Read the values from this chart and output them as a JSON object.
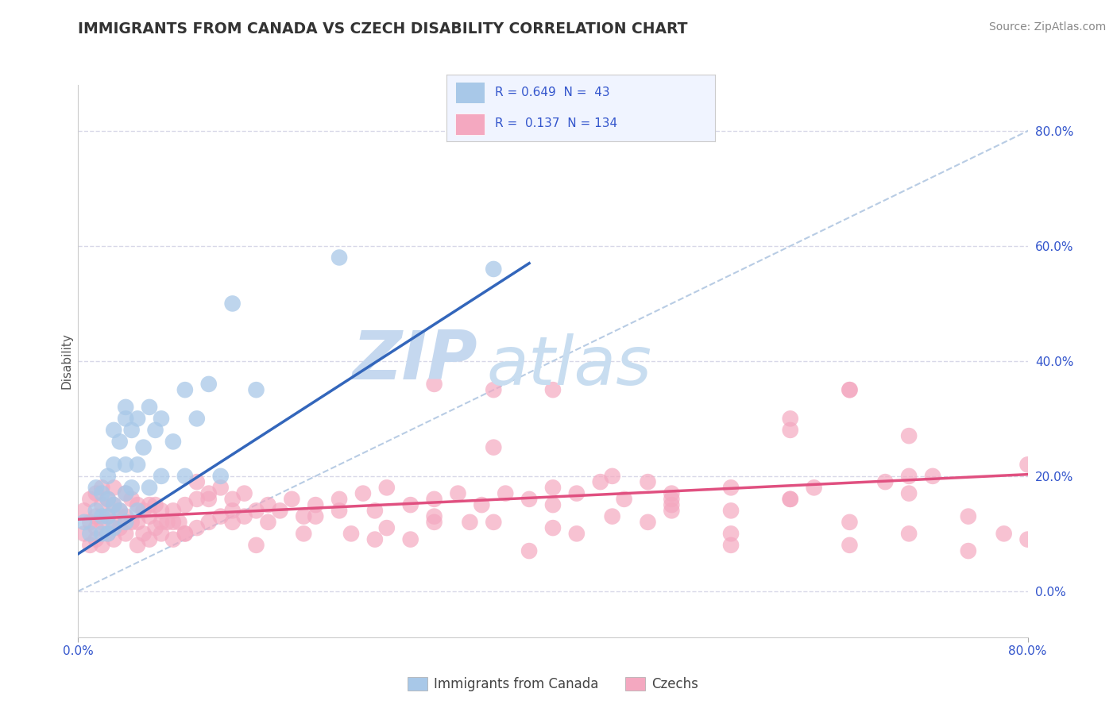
{
  "title": "IMMIGRANTS FROM CANADA VS CZECH DISABILITY CORRELATION CHART",
  "source": "Source: ZipAtlas.com",
  "ylabel": "Disability",
  "xlim": [
    0.0,
    0.8
  ],
  "ylim": [
    -0.08,
    0.88
  ],
  "ytick_values": [
    0.0,
    0.2,
    0.4,
    0.6,
    0.8
  ],
  "blue_color": "#a8c8e8",
  "pink_color": "#f4a8c0",
  "blue_line_color": "#3366bb",
  "pink_line_color": "#e05080",
  "diagonal_color": "#b8cce4",
  "background_color": "#ffffff",
  "grid_color": "#d8d8e8",
  "title_color": "#333333",
  "watermark_zip_color": "#d0dff0",
  "watermark_atlas_color": "#c8ddf0",
  "legend_text_color": "#3355cc",
  "legend_bg_color": "#f0f4ff",
  "legend_border_color": "#cccccc",
  "blue_scatter_x": [
    0.005,
    0.01,
    0.015,
    0.015,
    0.02,
    0.02,
    0.02,
    0.025,
    0.025,
    0.025,
    0.025,
    0.03,
    0.03,
    0.03,
    0.03,
    0.035,
    0.035,
    0.04,
    0.04,
    0.04,
    0.04,
    0.04,
    0.045,
    0.045,
    0.05,
    0.05,
    0.05,
    0.055,
    0.06,
    0.06,
    0.065,
    0.07,
    0.07,
    0.08,
    0.09,
    0.09,
    0.1,
    0.11,
    0.12,
    0.13,
    0.15,
    0.22,
    0.35
  ],
  "blue_scatter_y": [
    0.12,
    0.1,
    0.14,
    0.18,
    0.1,
    0.13,
    0.17,
    0.1,
    0.13,
    0.16,
    0.2,
    0.11,
    0.15,
    0.22,
    0.28,
    0.14,
    0.26,
    0.12,
    0.17,
    0.22,
    0.3,
    0.32,
    0.18,
    0.28,
    0.14,
    0.22,
    0.3,
    0.25,
    0.18,
    0.32,
    0.28,
    0.2,
    0.3,
    0.26,
    0.2,
    0.35,
    0.3,
    0.36,
    0.2,
    0.5,
    0.35,
    0.58,
    0.56
  ],
  "pink_scatter_x": [
    0.005,
    0.005,
    0.01,
    0.01,
    0.01,
    0.015,
    0.015,
    0.015,
    0.015,
    0.02,
    0.02,
    0.02,
    0.02,
    0.025,
    0.025,
    0.025,
    0.03,
    0.03,
    0.03,
    0.03,
    0.035,
    0.035,
    0.04,
    0.04,
    0.04,
    0.045,
    0.045,
    0.05,
    0.05,
    0.05,
    0.055,
    0.055,
    0.06,
    0.06,
    0.065,
    0.065,
    0.07,
    0.07,
    0.075,
    0.08,
    0.08,
    0.085,
    0.09,
    0.09,
    0.1,
    0.1,
    0.11,
    0.11,
    0.12,
    0.12,
    0.13,
    0.13,
    0.14,
    0.14,
    0.15,
    0.16,
    0.17,
    0.18,
    0.19,
    0.2,
    0.22,
    0.24,
    0.25,
    0.26,
    0.28,
    0.3,
    0.32,
    0.34,
    0.35,
    0.36,
    0.38,
    0.4,
    0.42,
    0.44,
    0.46,
    0.48,
    0.5,
    0.55,
    0.6,
    0.62,
    0.65,
    0.68,
    0.7,
    0.72,
    0.3,
    0.4,
    0.5,
    0.6,
    0.65,
    0.7,
    0.35,
    0.45,
    0.55,
    0.25,
    0.15,
    0.2,
    0.3,
    0.4,
    0.5,
    0.6,
    0.1,
    0.08,
    0.06,
    0.07,
    0.09,
    0.11,
    0.13,
    0.16,
    0.19,
    0.22,
    0.26,
    0.3,
    0.35,
    0.4,
    0.45,
    0.5,
    0.55,
    0.6,
    0.65,
    0.7,
    0.75,
    0.78,
    0.8,
    0.65,
    0.7,
    0.75,
    0.8,
    0.55,
    0.48,
    0.42,
    0.38,
    0.33,
    0.28,
    0.23
  ],
  "pink_scatter_y": [
    0.1,
    0.14,
    0.08,
    0.12,
    0.16,
    0.09,
    0.13,
    0.17,
    0.11,
    0.08,
    0.12,
    0.15,
    0.18,
    0.1,
    0.13,
    0.16,
    0.09,
    0.12,
    0.15,
    0.18,
    0.11,
    0.14,
    0.1,
    0.13,
    0.17,
    0.12,
    0.16,
    0.08,
    0.12,
    0.15,
    0.1,
    0.14,
    0.09,
    0.13,
    0.11,
    0.15,
    0.1,
    0.14,
    0.12,
    0.09,
    0.14,
    0.12,
    0.1,
    0.15,
    0.11,
    0.16,
    0.12,
    0.17,
    0.13,
    0.18,
    0.12,
    0.16,
    0.13,
    0.17,
    0.14,
    0.15,
    0.14,
    0.16,
    0.13,
    0.15,
    0.16,
    0.17,
    0.14,
    0.18,
    0.15,
    0.16,
    0.17,
    0.15,
    0.35,
    0.17,
    0.16,
    0.18,
    0.17,
    0.19,
    0.16,
    0.19,
    0.17,
    0.1,
    0.16,
    0.18,
    0.35,
    0.19,
    0.17,
    0.2,
    0.36,
    0.35,
    0.15,
    0.3,
    0.35,
    0.27,
    0.25,
    0.2,
    0.18,
    0.09,
    0.08,
    0.13,
    0.12,
    0.11,
    0.14,
    0.28,
    0.19,
    0.12,
    0.15,
    0.12,
    0.1,
    0.16,
    0.14,
    0.12,
    0.1,
    0.14,
    0.11,
    0.13,
    0.12,
    0.15,
    0.13,
    0.16,
    0.14,
    0.16,
    0.12,
    0.2,
    0.13,
    0.1,
    0.22,
    0.08,
    0.1,
    0.07,
    0.09,
    0.08,
    0.12,
    0.1,
    0.07,
    0.12,
    0.09,
    0.1
  ]
}
